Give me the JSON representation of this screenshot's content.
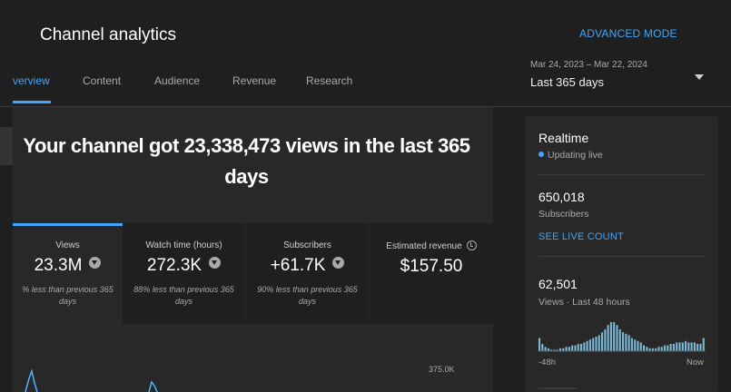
{
  "header": {
    "title": "Channel analytics",
    "advanced_mode": "ADVANCED MODE",
    "date_range": "Mar 24, 2023 – Mar 22, 2024",
    "period": "Last 365 days"
  },
  "tabs": [
    {
      "label": "verview",
      "active": true
    },
    {
      "label": "Content",
      "active": false
    },
    {
      "label": "Audience",
      "active": false
    },
    {
      "label": "Revenue",
      "active": false
    },
    {
      "label": "Research",
      "active": false
    }
  ],
  "overview": {
    "headline": "Your channel got 23,338,473 views in the last 365 days",
    "metrics": [
      {
        "label": "Views",
        "value": "23.3M",
        "comparison": "% less than previous 365 days",
        "active": true
      },
      {
        "label": "Watch time (hours)",
        "value": "272.3K",
        "comparison": "88% less than previous 365 days",
        "active": false
      },
      {
        "label": "Subscribers",
        "value": "+61.7K",
        "comparison": "90% less than previous 365 days",
        "active": false
      },
      {
        "label": "Estimated revenue",
        "value": "$157.50",
        "comparison": "",
        "active": false
      }
    ],
    "chart_axis_label": "375.0K"
  },
  "realtime": {
    "title": "Realtime",
    "status": "Updating live",
    "subscribers_value": "650,018",
    "subscribers_label": "Subscribers",
    "live_count_link": "SEE LIVE COUNT",
    "views_value": "62,501",
    "views_label": "Views · Last 48 hours",
    "axis_start": "-48h",
    "axis_end": "Now"
  },
  "colors": {
    "accent": "#3ea6ff",
    "background": "#1f1f1f",
    "panel": "#282828"
  },
  "icons": {
    "metric_trend": "down-arrow-circle-icon",
    "revenue_delay": "clock-icon",
    "date_dropdown": "caret-down-icon",
    "live_dot": "live-status-dot-icon"
  },
  "chart_data": {
    "realtime_views": {
      "type": "bar",
      "x_range": [
        "-48h",
        "Now"
      ],
      "values": [
        9,
        5,
        3,
        2,
        1,
        1,
        1,
        2,
        2,
        3,
        3,
        4,
        4,
        5,
        5,
        6,
        7,
        8,
        9,
        10,
        11,
        13,
        15,
        18,
        20,
        20,
        18,
        15,
        13,
        12,
        11,
        9,
        8,
        7,
        6,
        4,
        3,
        2,
        2,
        2,
        3,
        3,
        4,
        4,
        5,
        5,
        6,
        6,
        6,
        7,
        6,
        6,
        6,
        5,
        5,
        9
      ]
    }
  }
}
